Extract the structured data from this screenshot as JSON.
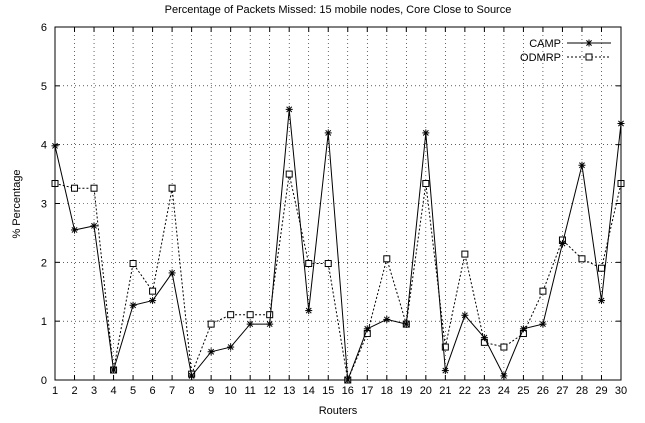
{
  "chart_data": {
    "type": "line",
    "title": "Percentage of Packets Missed: 15 mobile nodes, Core Close to Source",
    "xlabel": "Routers",
    "ylabel": "% Percentage",
    "xlim": [
      1,
      30
    ],
    "ylim": [
      0,
      6
    ],
    "x_ticks": [
      "1",
      "2",
      "3",
      "4",
      "5",
      "6",
      "7",
      "8",
      "9",
      "10",
      "11",
      "12",
      "13",
      "14",
      "15",
      "16",
      "17",
      "18",
      "19",
      "20",
      "21",
      "22",
      "23",
      "24",
      "25",
      "26",
      "27",
      "28",
      "29",
      "30"
    ],
    "y_ticks": [
      "0",
      "1",
      "2",
      "3",
      "4",
      "5",
      "6"
    ],
    "grid": true,
    "legend_position": "top-right",
    "x": [
      1,
      2,
      3,
      4,
      5,
      6,
      7,
      8,
      9,
      10,
      11,
      12,
      13,
      14,
      15,
      16,
      17,
      18,
      19,
      20,
      21,
      22,
      23,
      24,
      25,
      26,
      27,
      28,
      29,
      30
    ],
    "series": [
      {
        "name": "CAMP",
        "line_style": "solid",
        "marker": "asterisk",
        "values": [
          3.98,
          2.55,
          2.62,
          0.17,
          1.27,
          1.35,
          1.82,
          0.07,
          0.48,
          0.56,
          0.95,
          0.95,
          4.6,
          1.18,
          4.2,
          0.0,
          0.87,
          1.03,
          0.95,
          4.2,
          0.16,
          1.1,
          0.72,
          0.07,
          0.87,
          0.95,
          2.32,
          3.65,
          1.35,
          4.36
        ]
      },
      {
        "name": "ODMRP",
        "line_style": "dotted",
        "marker": "square",
        "values": [
          3.34,
          3.26,
          3.26,
          0.17,
          1.98,
          1.51,
          3.26,
          0.1,
          0.95,
          1.11,
          1.11,
          1.11,
          3.5,
          1.98,
          1.98,
          0.0,
          0.79,
          2.06,
          0.95,
          3.34,
          0.56,
          2.14,
          0.64,
          0.56,
          0.79,
          1.51,
          2.38,
          2.06,
          1.9,
          3.34
        ]
      }
    ],
    "colors": {
      "lines": "#000000",
      "grid": "#000000",
      "background": "#ffffff"
    }
  }
}
